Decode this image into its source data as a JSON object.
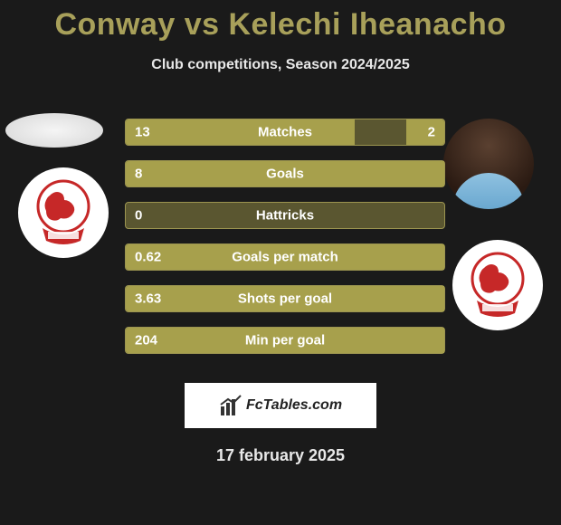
{
  "title": "Conway vs Kelechi Iheanacho",
  "subtitle": "Club competitions, Season 2024/2025",
  "brand": "FcTables.com",
  "date": "17 february 2025",
  "colors": {
    "background": "#1a1a1a",
    "accent": "#a8a05a",
    "bar_bg": "#5a5630",
    "bar_fill": "#a7a04c",
    "bar_border": "#9c9550",
    "text_light": "#e8e8e8",
    "text_white": "#ffffff"
  },
  "crest": {
    "primary": "#c62828",
    "secondary": "#ffffff",
    "banner": "#c62828"
  },
  "bars": [
    {
      "label": "Matches",
      "left": "13",
      "right": "2",
      "left_pct": 72,
      "right_pct": 12
    },
    {
      "label": "Goals",
      "left": "8",
      "right": "",
      "left_pct": 100,
      "right_pct": 0
    },
    {
      "label": "Hattricks",
      "left": "0",
      "right": "",
      "left_pct": 0,
      "right_pct": 0
    },
    {
      "label": "Goals per match",
      "left": "0.62",
      "right": "",
      "left_pct": 100,
      "right_pct": 0
    },
    {
      "label": "Shots per goal",
      "left": "3.63",
      "right": "",
      "left_pct": 100,
      "right_pct": 0
    },
    {
      "label": "Min per goal",
      "left": "204",
      "right": "",
      "left_pct": 100,
      "right_pct": 0
    }
  ],
  "typography": {
    "title_fontsize": 34,
    "subtitle_fontsize": 16,
    "bar_label_fontsize": 15,
    "date_fontsize": 18
  }
}
